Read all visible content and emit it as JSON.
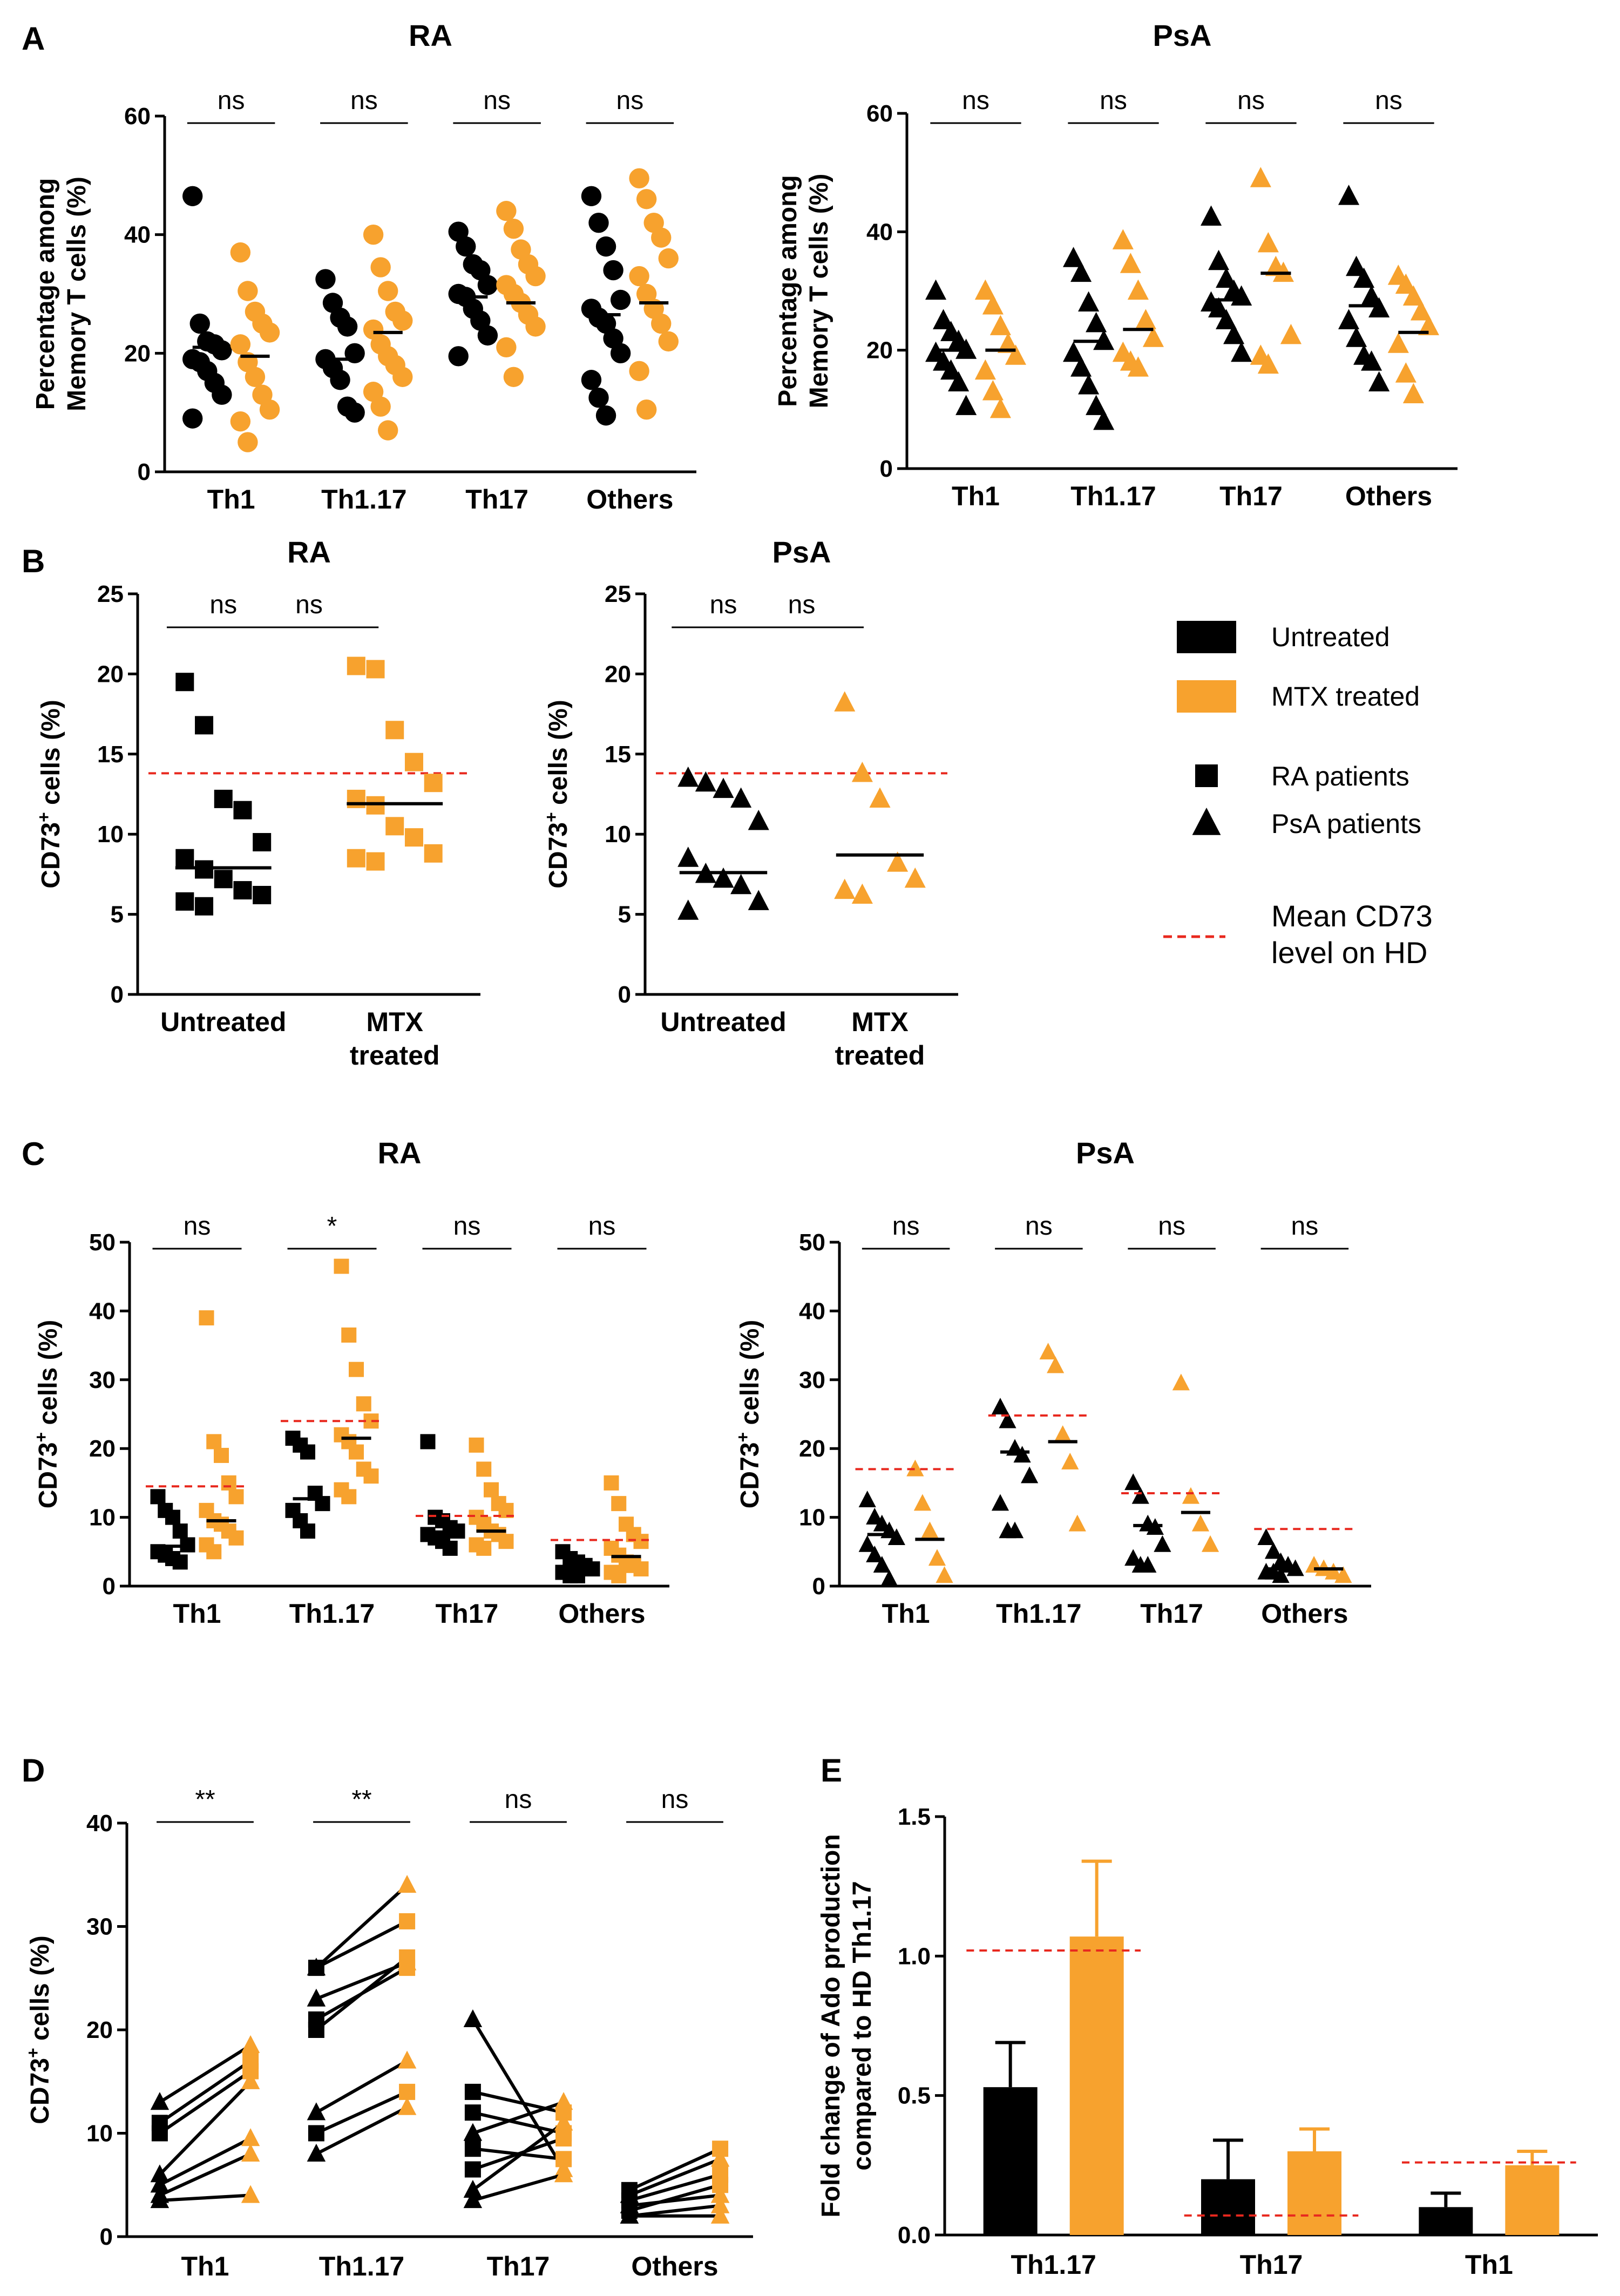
{
  "colors": {
    "untreated": "#000000",
    "mtx": "#F7A22E",
    "hd_line": "#E8281E"
  },
  "panel_labels": [
    "A",
    "B",
    "C",
    "D",
    "E"
  ],
  "legend": {
    "untreated": "Untreated",
    "mtx": "MTX treated",
    "ra": "RA patients",
    "psa": "PsA patients",
    "hd_line": [
      "Mean CD73",
      "level on HD"
    ]
  },
  "chart_data": [
    {
      "id": "A-RA",
      "type": "scatter",
      "title": "RA",
      "marker": "circle",
      "ylabel": [
        "Percentage among",
        "Memory T cells (%)"
      ],
      "ylim": [
        0,
        60
      ],
      "yticks": [
        0,
        20,
        40,
        60
      ],
      "categories": [
        "Th1",
        "Th1.17",
        "Th17",
        "Others"
      ],
      "significance": [
        "ns",
        "ns",
        "ns",
        "ns"
      ],
      "series": [
        {
          "name": "Untreated",
          "values": [
            [
              46.5,
              25,
              22,
              21.5,
              20.5,
              19,
              18.5,
              17,
              15,
              13,
              9
            ],
            [
              32.5,
              28.5,
              26,
              24.5,
              20,
              19,
              17.5,
              15.5,
              11,
              10
            ],
            [
              40.5,
              38,
              35,
              34,
              31.5,
              30,
              29.5,
              27.5,
              25.5,
              23,
              19.5
            ],
            [
              46.5,
              42,
              38,
              34,
              29,
              27.5,
              26,
              25,
              22.5,
              20,
              15.5,
              12.5,
              9.5
            ]
          ],
          "means": [
            21,
            19,
            29.5,
            26.5
          ]
        },
        {
          "name": "MTX treated",
          "values": [
            [
              37,
              30.5,
              27,
              25,
              23.5,
              21.5,
              18.5,
              16,
              13,
              10.5,
              8.5,
              5
            ],
            [
              40,
              34.5,
              30.5,
              27,
              25.5,
              24,
              21.5,
              19.5,
              18,
              16,
              13.5,
              11,
              7
            ],
            [
              44,
              41,
              37.5,
              35,
              33,
              31.5,
              30,
              28.5,
              26.5,
              24.5,
              21,
              16
            ],
            [
              49.5,
              46,
              42,
              39.5,
              36,
              33,
              30,
              27.5,
              25,
              22,
              17,
              10.5
            ]
          ],
          "means": [
            19.5,
            23.5,
            28.5,
            28.5
          ]
        }
      ]
    },
    {
      "id": "A-PsA",
      "type": "scatter",
      "title": "PsA",
      "marker": "triangle",
      "ylabel": [
        "Percentage among",
        "Memory T cells (%)"
      ],
      "ylim": [
        0,
        60
      ],
      "yticks": [
        0,
        20,
        40,
        60
      ],
      "categories": [
        "Th1",
        "Th1.17",
        "Th17",
        "Others"
      ],
      "significance": [
        "ns",
        "ns",
        "ns",
        "ns"
      ],
      "series": [
        {
          "name": "Untreated",
          "values": [
            [
              30,
              25,
              23,
              21.5,
              20,
              19.5,
              18,
              16.5,
              14.5,
              10.5
            ],
            [
              35.5,
              33,
              28,
              24.5,
              21.5,
              19.5,
              17,
              14,
              10.5,
              8
            ],
            [
              42.5,
              35,
              32,
              30,
              29,
              28,
              27,
              25,
              22.5,
              19.5
            ],
            [
              46,
              34,
              32,
              29,
              27,
              25,
              22,
              19,
              18,
              14.5
            ]
          ],
          "means": [
            20,
            21.5,
            28.5,
            27.5
          ]
        },
        {
          "name": "MTX treated",
          "values": [
            [
              30,
              27.5,
              24,
              21,
              19,
              16.5,
              13,
              10
            ],
            [
              38.5,
              34.5,
              30,
              25,
              22,
              19.5,
              18,
              17
            ],
            [
              49,
              38,
              34,
              33,
              22.5,
              19,
              17.5
            ],
            [
              32.5,
              31,
              29,
              26.5,
              24,
              21,
              16,
              12.5
            ]
          ],
          "means": [
            20,
            23.5,
            33,
            23
          ]
        }
      ]
    },
    {
      "id": "B-RA",
      "type": "scatter",
      "title": "RA",
      "marker": "square",
      "ylabel": "CD73+ cells (%)",
      "ylim": [
        0,
        25
      ],
      "yticks": [
        0,
        5,
        10,
        15,
        20,
        25
      ],
      "categories": [
        "Untreated",
        "MTX treated"
      ],
      "significance": [
        "ns"
      ],
      "hd_mean": 13.8,
      "series": [
        {
          "name": "Untreated",
          "values": [
            19.5,
            16.8,
            12.2,
            11.5,
            9.5,
            8.5,
            7.8,
            7.2,
            6.5,
            6.2,
            5.8,
            5.5
          ],
          "mean": 7.9
        },
        {
          "name": "MTX treated",
          "values": [
            20.5,
            20.3,
            16.5,
            14.5,
            13.2,
            12.2,
            11.8,
            10.5,
            9.8,
            8.8,
            8.5,
            8.3
          ],
          "mean": 11.9
        }
      ]
    },
    {
      "id": "B-PsA",
      "type": "scatter",
      "title": "PsA",
      "marker": "triangle",
      "ylabel": "CD73+ cells (%)",
      "ylim": [
        0,
        25
      ],
      "yticks": [
        0,
        5,
        10,
        15,
        20,
        25
      ],
      "categories": [
        "Untreated",
        "MTX treated"
      ],
      "significance": [
        "ns"
      ],
      "hd_mean": 13.8,
      "series": [
        {
          "name": "Untreated",
          "values": [
            13.5,
            13.2,
            12.8,
            12.2,
            10.8,
            8.5,
            7.5,
            7.2,
            6.8,
            5.8,
            5.2
          ],
          "mean": 7.6
        },
        {
          "name": "MTX treated",
          "values": [
            18.2,
            13.8,
            12.2,
            8.2,
            7.2,
            6.5,
            6.2
          ],
          "mean": 8.7
        }
      ]
    },
    {
      "id": "C-RA",
      "type": "scatter",
      "title": "RA",
      "marker": "square",
      "ylabel": "CD73+ cells (%)",
      "ylim": [
        0,
        50
      ],
      "yticks": [
        0,
        10,
        20,
        30,
        40,
        50
      ],
      "categories": [
        "Th1",
        "Th1.17",
        "Th17",
        "Others"
      ],
      "significance": [
        "ns",
        "*",
        "ns",
        "ns"
      ],
      "hd_means": [
        14.5,
        24,
        10.2,
        6.7
      ],
      "series": [
        {
          "name": "Untreated",
          "values": [
            [
              13,
              11,
              10,
              8,
              6,
              5,
              4.5,
              4,
              3.5
            ],
            [
              21.5,
              20.5,
              19.5,
              13.5,
              12,
              11,
              9.5,
              8
            ],
            [
              21,
              10,
              9.5,
              8.5,
              8,
              7.5,
              7,
              6.5,
              5.5
            ],
            [
              5,
              4,
              3.5,
              3,
              2.5,
              2,
              1.5,
              1.5
            ]
          ],
          "means": [
            5.8,
            12.7,
            7.7,
            2.6
          ]
        },
        {
          "name": "MTX treated",
          "values": [
            [
              39,
              21,
              19,
              15,
              13,
              11,
              9.5,
              9,
              8,
              7,
              6,
              5
            ],
            [
              46.5,
              36.5,
              31.5,
              26.5,
              24,
              22,
              21,
              19.5,
              17,
              16,
              14,
              13
            ],
            [
              20.5,
              17,
              14,
              12,
              11,
              10,
              9,
              8,
              7.5,
              6.5,
              6,
              5.5
            ],
            [
              15,
              12,
              9,
              7.5,
              6.5,
              5.5,
              4.5,
              3.5,
              3,
              2.5,
              2,
              1.5
            ]
          ],
          "means": [
            9.5,
            21.5,
            8,
            4.3
          ]
        }
      ]
    },
    {
      "id": "C-PsA",
      "type": "scatter",
      "title": "PsA",
      "marker": "triangle",
      "ylabel": "CD73+ cells (%)",
      "ylim": [
        0,
        50
      ],
      "yticks": [
        0,
        10,
        20,
        30,
        40,
        50
      ],
      "categories": [
        "Th1",
        "Th1.17",
        "Th17",
        "Others"
      ],
      "significance": [
        "ns",
        "ns",
        "ns",
        "ns"
      ],
      "hd_means": [
        17,
        24.8,
        13.5,
        8.3
      ],
      "series": [
        {
          "name": "Untreated",
          "values": [
            [
              12.5,
              10,
              9,
              8,
              7,
              6,
              4.5,
              3,
              1
            ],
            [
              26,
              24,
              20,
              19,
              16,
              12,
              8,
              8
            ],
            [
              15,
              13,
              9,
              8.5,
              6,
              4,
              3,
              3
            ],
            [
              7,
              5,
              3.5,
              3,
              2.5,
              2,
              2,
              1.5
            ]
          ],
          "means": [
            7.5,
            19.5,
            8.8,
            2.5
          ]
        },
        {
          "name": "MTX treated",
          "values": [
            [
              17,
              12,
              8,
              4,
              1.5
            ],
            [
              34,
              32,
              22,
              18,
              9
            ],
            [
              29.5,
              13,
              9,
              6
            ],
            [
              3,
              2.5,
              2,
              1.5
            ]
          ],
          "means": [
            6.8,
            21,
            10.7,
            2.5
          ]
        }
      ]
    },
    {
      "id": "D",
      "type": "scatter",
      "paired": true,
      "ylabel": "CD73+ cells (%)",
      "ylim": [
        0,
        40
      ],
      "yticks": [
        0,
        10,
        20,
        30,
        40
      ],
      "categories": [
        "Th1",
        "Th1.17",
        "Th17",
        "Others"
      ],
      "significance": [
        "**",
        "**",
        "ns",
        "ns"
      ],
      "pairs": [
        [
          [
            13,
            18.5,
            "t"
          ],
          [
            11,
            17,
            "s"
          ],
          [
            10,
            16,
            "s"
          ],
          [
            6,
            15,
            "t"
          ],
          [
            5,
            9.5,
            "t"
          ],
          [
            4,
            8,
            "t"
          ],
          [
            3.5,
            4,
            "t"
          ]
        ],
        [
          [
            26,
            34,
            "t"
          ],
          [
            26,
            30.5,
            "s"
          ],
          [
            23,
            26.5,
            "t"
          ],
          [
            21,
            26,
            "s"
          ],
          [
            20,
            27,
            "s"
          ],
          [
            12,
            17,
            "t"
          ],
          [
            10,
            14,
            "s"
          ],
          [
            8,
            12.5,
            "t"
          ]
        ],
        [
          [
            21,
            6.5,
            "t"
          ],
          [
            14,
            12,
            "s"
          ],
          [
            12,
            10,
            "s"
          ],
          [
            10,
            13,
            "t"
          ],
          [
            8.5,
            7.5,
            "s"
          ],
          [
            6.5,
            9.5,
            "s"
          ],
          [
            4.5,
            11,
            "t"
          ],
          [
            3.5,
            6,
            "t"
          ]
        ],
        [
          [
            4.5,
            8.5,
            "s"
          ],
          [
            4,
            7.5,
            "t"
          ],
          [
            3.5,
            6,
            "s"
          ],
          [
            3,
            4,
            "t"
          ],
          [
            2.5,
            5,
            "s"
          ],
          [
            2,
            3,
            "t"
          ],
          [
            2,
            2,
            "t"
          ]
        ]
      ]
    },
    {
      "id": "E",
      "type": "bar",
      "ylabel": [
        "Fold change of Ado production",
        "compared to HD Th1.17"
      ],
      "ylim": [
        0,
        1.5
      ],
      "yticks": [
        "0.0",
        "0.5",
        "1.0",
        "1.5"
      ],
      "categories": [
        "Th1.17",
        "Th17",
        "Th1"
      ],
      "hd_means": [
        1.02,
        0.07,
        0.26
      ],
      "series": [
        {
          "name": "Untreated",
          "values": [
            0.53,
            0.2,
            0.1
          ],
          "errors": [
            0.16,
            0.14,
            0.05
          ]
        },
        {
          "name": "MTX treated",
          "values": [
            1.07,
            0.3,
            0.25
          ],
          "errors": [
            0.27,
            0.08,
            0.05
          ]
        }
      ]
    }
  ]
}
